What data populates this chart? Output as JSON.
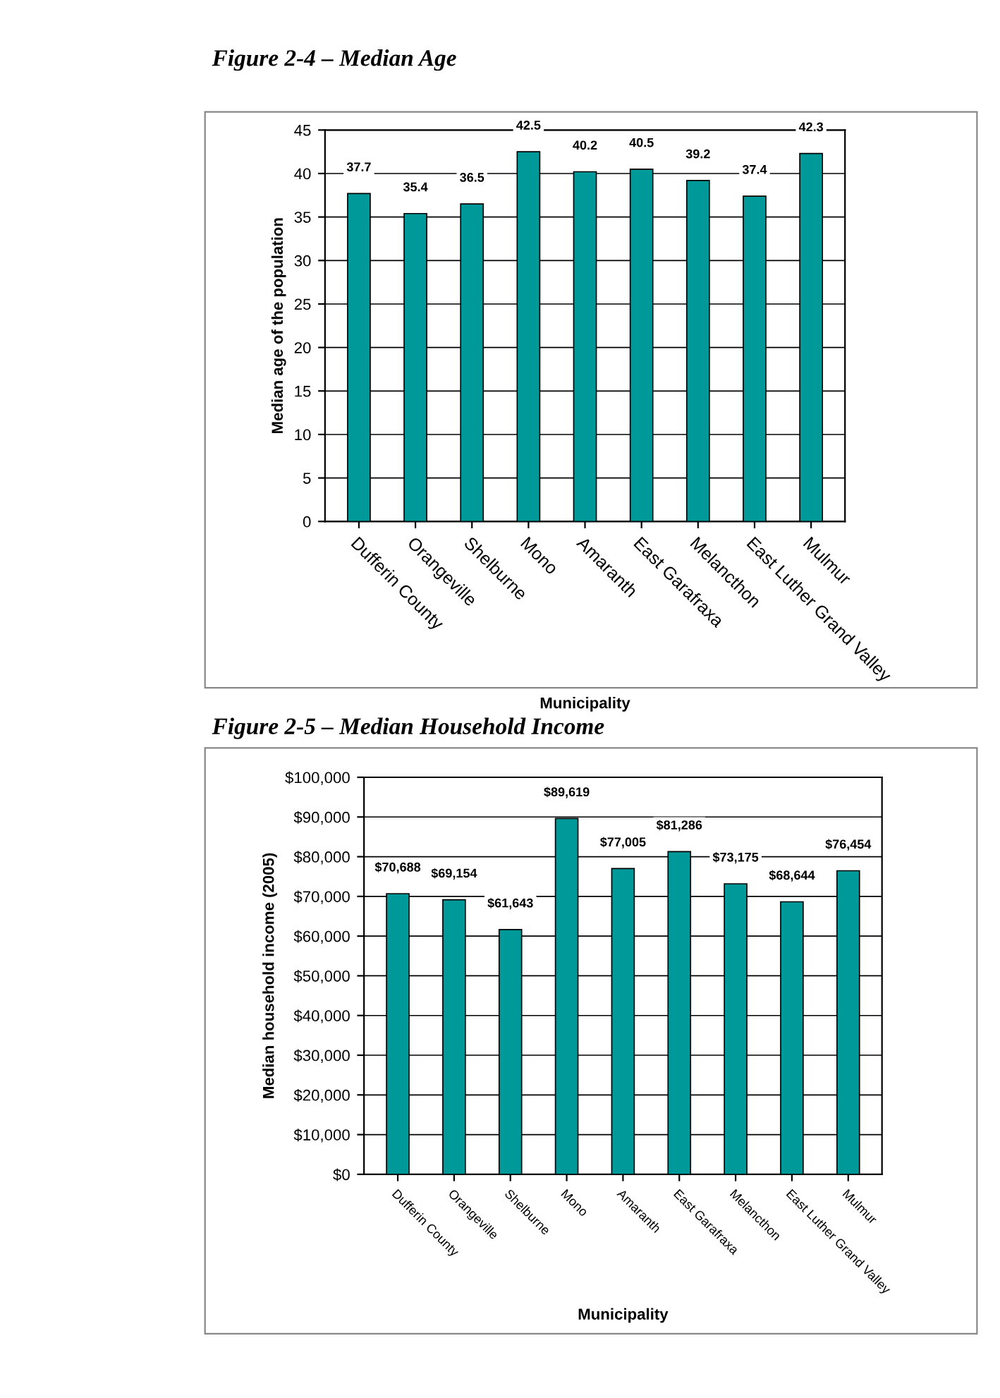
{
  "chart_data": [
    {
      "type": "bar",
      "title": "Figure 2-4 – Median Age",
      "xlabel": "Municipality",
      "ylabel": "Median age of the population",
      "categories": [
        "Dufferin County",
        "Orangeville",
        "Shelburne",
        "Mono",
        "Amaranth",
        "East Garafraxa",
        "Melancthon",
        "East Luther Grand Valley",
        "Mulmur"
      ],
      "values": [
        37.7,
        35.4,
        36.5,
        42.5,
        40.2,
        40.5,
        39.2,
        37.4,
        42.3
      ],
      "color": "#009999",
      "ylim": [
        0,
        45
      ],
      "yticks": [
        0,
        5,
        10,
        15,
        20,
        25,
        30,
        35,
        40,
        45
      ],
      "grid": "y",
      "data_labels": true
    },
    {
      "type": "bar",
      "title": "Figure 2-5 – Median Household Income",
      "xlabel": "Municipality",
      "ylabel": "Median household income (2005)",
      "categories": [
        "Dufferin County",
        "Orangeville",
        "Shelburne",
        "Mono",
        "Amaranth",
        "East Garafraxa",
        "Melancthon",
        "East Luther Grand Valley",
        "Mulmur"
      ],
      "values": [
        70688,
        69154,
        61643,
        89619,
        77005,
        81286,
        73175,
        68644,
        76454
      ],
      "color": "#009999",
      "value_labels": [
        "$70,688",
        "$69,154",
        "$61,643",
        "$89,619",
        "$77,005",
        "$81,286",
        "$73,175",
        "$68,644",
        "$76,454"
      ],
      "ylim": [
        0,
        100000
      ],
      "yticks": [
        {
          "value": 0,
          "label": "$0"
        },
        {
          "value": 10000,
          "label": "$10,000"
        },
        {
          "value": 20000,
          "label": "$20,000"
        },
        {
          "value": 30000,
          "label": "$30,000"
        },
        {
          "value": 40000,
          "label": "$40,000"
        },
        {
          "value": 50000,
          "label": "$50,000"
        },
        {
          "value": 60000,
          "label": "$60,000"
        },
        {
          "value": 70000,
          "label": "$70,000"
        },
        {
          "value": 80000,
          "label": "$80,000"
        },
        {
          "value": 90000,
          "label": "$90,000"
        },
        {
          "value": 100000,
          "label": "$100,000"
        }
      ],
      "grid": "y"
    }
  ]
}
